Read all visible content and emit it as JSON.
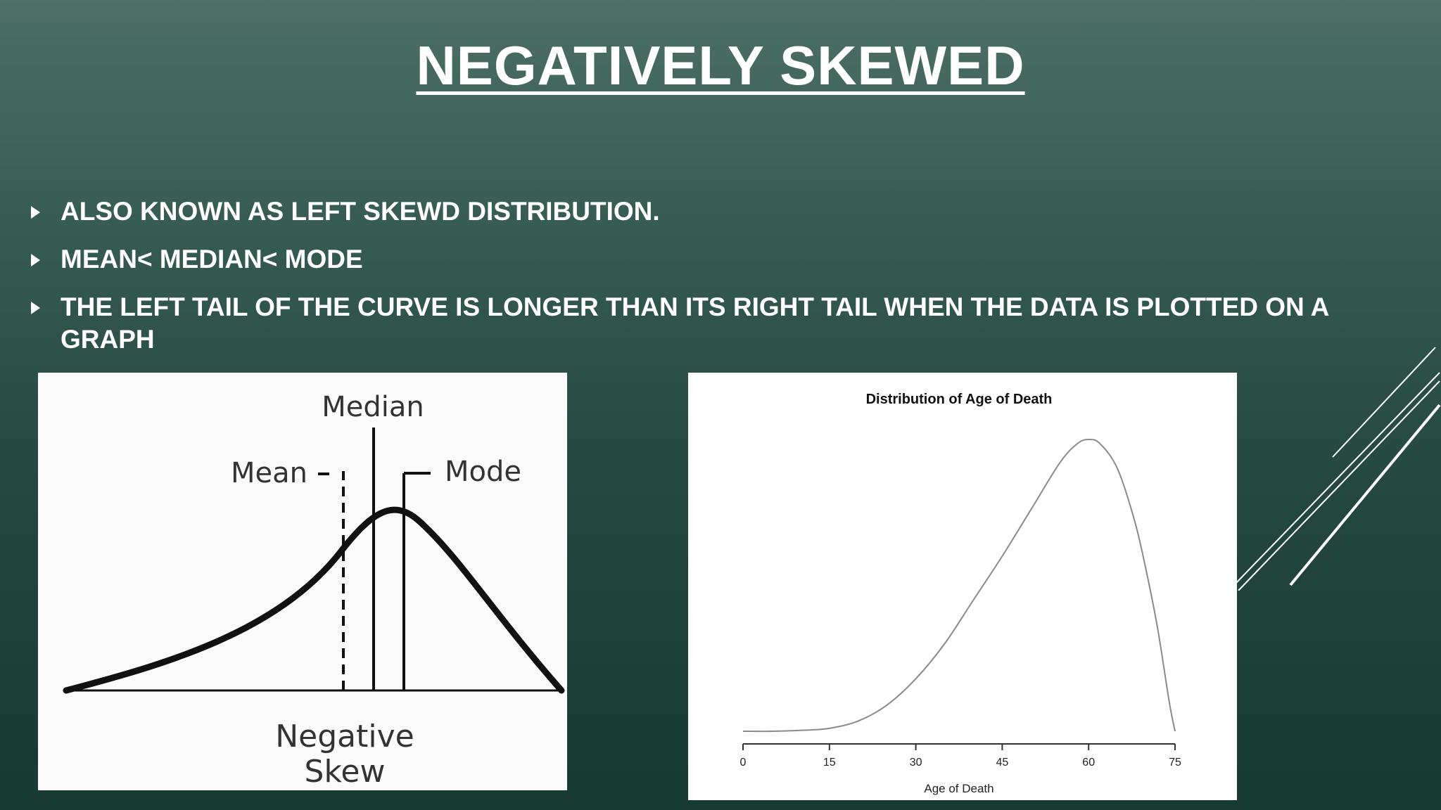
{
  "slide": {
    "title": "NEGATIVELY SKEWED",
    "bullets": [
      "ALSO KNOWN AS LEFT SKEWD DISTRIBUTION.",
      "MEAN< MEDIAN< MODE",
      "THE LEFT TAIL OF THE CURVE IS LONGER THAN ITS RIGHT TAIL WHEN THE DATA IS PLOTTED ON A GRAPH"
    ]
  },
  "left_diagram": {
    "labels": {
      "median": "Median",
      "mean": "Mean",
      "mode": "Mode",
      "caption_line1": "Negative",
      "caption_line2": "Skew"
    }
  },
  "chart_data": {
    "type": "line",
    "title": "Distribution of Age of Death",
    "xlabel": "Age of Death",
    "ylabel": "",
    "xlim": [
      0,
      75
    ],
    "xticks": [
      0,
      15,
      30,
      45,
      60,
      75
    ],
    "series": [
      {
        "x": [
          0,
          5,
          10,
          15,
          20,
          25,
          30,
          35,
          40,
          45,
          50,
          55,
          58,
          60,
          62,
          65,
          68,
          70,
          72,
          74,
          75
        ],
        "values": [
          0.0,
          0.0,
          0.003,
          0.01,
          0.035,
          0.09,
          0.18,
          0.3,
          0.45,
          0.6,
          0.76,
          0.92,
          0.985,
          1.0,
          0.985,
          0.9,
          0.72,
          0.55,
          0.35,
          0.1,
          0.0
        ]
      }
    ],
    "grid": false,
    "colors": {
      "line": "#8a8a8a",
      "axis": "#333333"
    }
  }
}
